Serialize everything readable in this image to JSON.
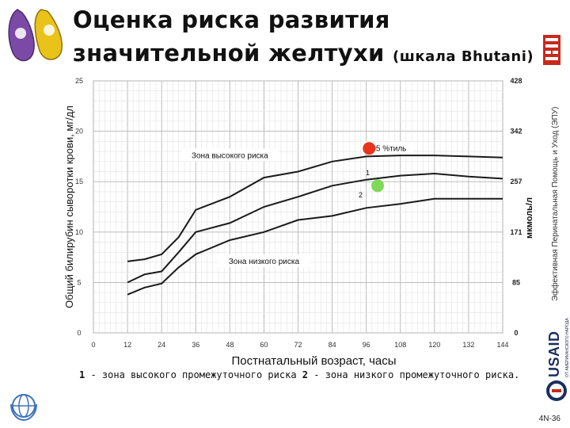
{
  "slide": {
    "title_line1": "Оценка риска развития",
    "title_line2": "значительной желтухи",
    "title_sub": "(шкала Bhutani)",
    "vertical_credit": "Эффективная Перинатальная Помощь и Уход (ЭПУ)",
    "usaid_logo_text": "USAID",
    "usaid_tagline": "ОТ АМЕРИКАНСКОГО НАРОДА",
    "slide_number": "4N-36",
    "footnote": {
      "part1_num": "1",
      "part1_text": " - зона высокого промежуточного риска ",
      "part2_num": "2",
      "part2_text": " - зона низкого промежуточного риска."
    },
    "colors": {
      "accent_violet": "#7a4aa6",
      "logo_yellow": "#e9c21a",
      "red_dot": "#e8341c",
      "green_dot": "#7ed957",
      "usaid_navy": "#1b2e5e"
    }
  },
  "chart_data": {
    "type": "line",
    "title": "",
    "xlabel": "Постнатальный возраст, часы",
    "ylabel": "Общий билирубин сыворотки крови, мг/дл",
    "ylabel_right": "мкмоль/л",
    "xlim": [
      0,
      144
    ],
    "ylim": [
      0,
      25
    ],
    "x_ticks": [
      0,
      12,
      24,
      36,
      48,
      60,
      72,
      84,
      96,
      108,
      120,
      132,
      144
    ],
    "y_ticks": [
      0,
      5,
      10,
      15,
      20,
      25
    ],
    "y_right_ticks": [
      {
        "value": 0,
        "label": "0"
      },
      {
        "value": 5,
        "label": "85"
      },
      {
        "value": 10,
        "label": "171"
      },
      {
        "value": 15,
        "label": "257"
      },
      {
        "value": 20,
        "label": "342"
      },
      {
        "value": 25,
        "label": "428"
      }
    ],
    "grid": true,
    "series": [
      {
        "name": "95 %тиль",
        "x": [
          12,
          18,
          24,
          30,
          36,
          48,
          60,
          72,
          84,
          96,
          108,
          120,
          132,
          144
        ],
        "y": [
          7.1,
          7.3,
          7.8,
          9.5,
          12.2,
          13.5,
          15.4,
          16.0,
          17.0,
          17.5,
          17.6,
          17.6,
          17.5,
          17.4
        ]
      },
      {
        "name": "1",
        "x": [
          12,
          18,
          24,
          30,
          36,
          48,
          60,
          72,
          84,
          96,
          108,
          120,
          132,
          144
        ],
        "y": [
          5.0,
          5.8,
          6.1,
          8.0,
          10.0,
          10.9,
          12.5,
          13.5,
          14.6,
          15.2,
          15.6,
          15.8,
          15.5,
          15.3
        ]
      },
      {
        "name": "2",
        "x": [
          12,
          18,
          24,
          30,
          36,
          48,
          60,
          72,
          84,
          96,
          108,
          120,
          132,
          144
        ],
        "y": [
          3.8,
          4.5,
          4.9,
          6.5,
          7.8,
          9.2,
          10.0,
          11.2,
          11.6,
          12.4,
          12.8,
          13.3,
          13.3,
          13.3
        ]
      }
    ],
    "annotations": [
      {
        "text": "Зона высокого риска",
        "x": 48,
        "y": 17.5
      },
      {
        "text": "Зона низкого риска",
        "x": 60,
        "y": 7.0
      },
      {
        "text": "95 %тиль",
        "x": 104,
        "y": 18.2
      },
      {
        "text": "1",
        "x": 96.5,
        "y": 15.8
      },
      {
        "text": "2",
        "x": 94,
        "y": 13.6
      }
    ],
    "markers": [
      {
        "x": 97,
        "y": 18.3,
        "color": "#e8341c"
      },
      {
        "x": 100,
        "y": 14.6,
        "color": "#7ed957"
      }
    ]
  }
}
